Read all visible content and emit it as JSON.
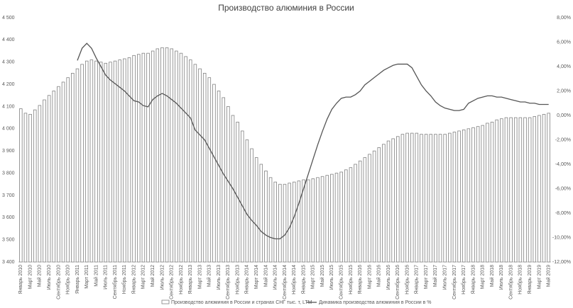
{
  "chart_data": {
    "type": "bar_line",
    "title": "Производство алюминия в России",
    "categories": [
      "Январь 2010",
      null,
      "Март 2010",
      null,
      "Май 2010",
      null,
      "Июль 2010",
      null,
      "Сентябрь 2010",
      null,
      "Ноябрь 2010",
      null,
      "Январь 2011",
      null,
      "Март 2011",
      null,
      "Май 2011",
      null,
      "Июль 2011",
      null,
      "Сентябрь 2011",
      null,
      "Ноябрь 2011",
      null,
      "Январь 2012",
      null,
      "Март 2012",
      null,
      "Май 2012",
      null,
      "Июль 2012",
      null,
      "Сентябрь 2012",
      null,
      "Ноябрь 2012",
      null,
      "Январь 2013",
      null,
      "Март 2013",
      null,
      "Май 2013",
      null,
      "Июль 2013",
      null,
      "Сентябрь 2013",
      null,
      "Ноябрь 2013",
      null,
      "Январь 2014",
      null,
      "Март 2014",
      null,
      "Май 2014",
      null,
      "Июль 2014",
      null,
      "Сентябрь 2014",
      null,
      "Ноябрь 2014",
      null,
      "Январь 2015",
      null,
      "Март 2015",
      null,
      "Май 2015",
      null,
      "Июль 2015",
      null,
      "Сентябрь 2015",
      null,
      "Ноябрь 2015",
      null,
      "Январь 2016",
      null,
      "Март 2016",
      null,
      "Май 2016",
      null,
      "Июль 2016",
      null,
      "Сентябрь 2016",
      null,
      "Ноябрь 2016",
      null,
      "Январь 2017",
      null,
      "Март 2017",
      null,
      "Май 2017",
      null,
      "Июль 2017",
      null,
      "Сентябрь 2017",
      null,
      "Ноябрь 2017",
      null,
      "Январь 2018",
      null,
      "Март 2018",
      null,
      "Май 2018",
      null,
      "Июль 2018",
      null,
      "Сентябрь 2018",
      null,
      "Ноябрь 2018",
      null,
      "Январь 2019",
      null,
      "Март 2019",
      null,
      "Май 2019"
    ],
    "series": [
      {
        "name": "Производство алюминия в России и странах СНГ тыс. т, LTM",
        "type": "bar",
        "color": "#ffffff",
        "stroke": "#808080",
        "values": [
          4090,
          4070,
          4065,
          4085,
          4105,
          4130,
          4150,
          4170,
          4190,
          4210,
          4230,
          4250,
          4270,
          4290,
          4305,
          4310,
          4305,
          4300,
          4295,
          4300,
          4305,
          4310,
          4315,
          4320,
          4330,
          4335,
          4340,
          4340,
          4350,
          4360,
          4365,
          4365,
          4360,
          4350,
          4340,
          4325,
          4310,
          4290,
          4270,
          4250,
          4230,
          4200,
          4170,
          4140,
          4100,
          4060,
          4030,
          3990,
          3950,
          3910,
          3870,
          3840,
          3810,
          3780,
          3760,
          3750,
          3750,
          3755,
          3760,
          3765,
          3770,
          3770,
          3775,
          3780,
          3785,
          3790,
          3795,
          3800,
          3805,
          3815,
          3825,
          3840,
          3855,
          3870,
          3885,
          3900,
          3915,
          3930,
          3945,
          3955,
          3965,
          3975,
          3980,
          3980,
          3980,
          3975,
          3975,
          3975,
          3975,
          3975,
          3975,
          3980,
          3985,
          3990,
          3995,
          4000,
          4005,
          4010,
          4015,
          4025,
          4030,
          4040,
          4045,
          4050,
          4050,
          4050,
          4050,
          4050,
          4050,
          4055,
          4060,
          4065,
          4070
        ]
      },
      {
        "name": "Динамика производства алюминия в России в %",
        "type": "line",
        "axis": "y2",
        "color": "#555555",
        "values": [
          null,
          null,
          null,
          null,
          null,
          null,
          null,
          null,
          null,
          null,
          null,
          null,
          4.5,
          5.5,
          5.9,
          5.5,
          4.7,
          4.0,
          3.3,
          2.9,
          2.6,
          2.3,
          2.0,
          1.6,
          1.2,
          1.1,
          0.8,
          0.7,
          1.3,
          1.6,
          1.8,
          1.6,
          1.3,
          1.0,
          0.6,
          0.2,
          -0.2,
          -1.2,
          -1.6,
          -2.0,
          -2.7,
          -3.4,
          -4.1,
          -4.8,
          -5.4,
          -6.0,
          -6.7,
          -7.4,
          -8.1,
          -8.6,
          -9.0,
          -9.5,
          -9.8,
          -10.0,
          -10.1,
          -10.1,
          -9.8,
          -9.2,
          -8.3,
          -7.2,
          -6.0,
          -4.8,
          -3.6,
          -2.4,
          -1.3,
          -0.3,
          0.5,
          1.0,
          1.4,
          1.5,
          1.5,
          1.7,
          2.0,
          2.5,
          2.8,
          3.1,
          3.4,
          3.7,
          3.9,
          4.1,
          4.2,
          4.2,
          4.2,
          3.9,
          3.2,
          2.5,
          2.0,
          1.6,
          1.1,
          0.8,
          0.6,
          0.5,
          0.4,
          0.4,
          0.5,
          1.0,
          1.2,
          1.4,
          1.5,
          1.6,
          1.6,
          1.5,
          1.5,
          1.4,
          1.3,
          1.2,
          1.1,
          1.1,
          1.0,
          1.0,
          0.9,
          0.9,
          0.9
        ]
      }
    ],
    "ylim": [
      3400,
      4500
    ],
    "yticks": [
      {
        "value": 3400,
        "label": "3 400"
      },
      {
        "value": 3500,
        "label": "3 500"
      },
      {
        "value": 3600,
        "label": "3 600"
      },
      {
        "value": 3700,
        "label": "3 700"
      },
      {
        "value": 3800,
        "label": "3 800"
      },
      {
        "value": 3900,
        "label": "3 900"
      },
      {
        "value": 4000,
        "label": "4 000"
      },
      {
        "value": 4100,
        "label": "4 100"
      },
      {
        "value": 4200,
        "label": "4 200"
      },
      {
        "value": 4300,
        "label": "4 300"
      },
      {
        "value": 4400,
        "label": "4 400"
      },
      {
        "value": 4500,
        "label": "4 500"
      }
    ],
    "y2lim": [
      -12,
      8
    ],
    "y2ticks": [
      {
        "value": -12,
        "label": "-12,00%"
      },
      {
        "value": -10,
        "label": "-10,00%"
      },
      {
        "value": -8,
        "label": "-8,00%"
      },
      {
        "value": -6,
        "label": "-6,00%"
      },
      {
        "value": -4,
        "label": "-4,00%"
      },
      {
        "value": -2,
        "label": "-2,00%"
      },
      {
        "value": 0,
        "label": "0,00%"
      },
      {
        "value": 2,
        "label": "2,00%"
      },
      {
        "value": 4,
        "label": "4,00%"
      },
      {
        "value": 6,
        "label": "6,00%"
      },
      {
        "value": 8,
        "label": "8,00%"
      }
    ],
    "legend": "bottom"
  }
}
